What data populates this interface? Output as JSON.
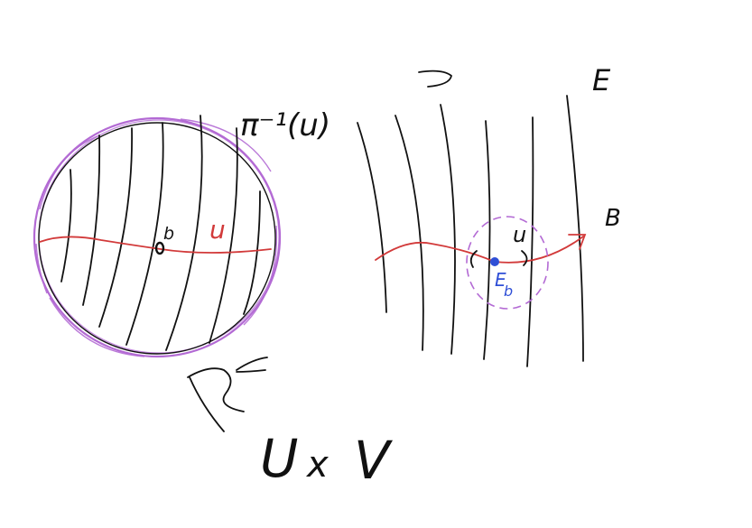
{
  "colors": {
    "ink": "#111111",
    "red": "#d23a3a",
    "purple": "#b36ad4",
    "blue": "#2f4fd6",
    "background": "#ffffff"
  },
  "labels": {
    "preimage": "π⁻¹(u)",
    "u_left": "u",
    "b_left": "b",
    "total_space": "E",
    "base_space": "B",
    "u_right": "u",
    "fiber": "E",
    "fiber_sub": "b",
    "product_u": "U",
    "times": "x",
    "product_v": "V"
  }
}
